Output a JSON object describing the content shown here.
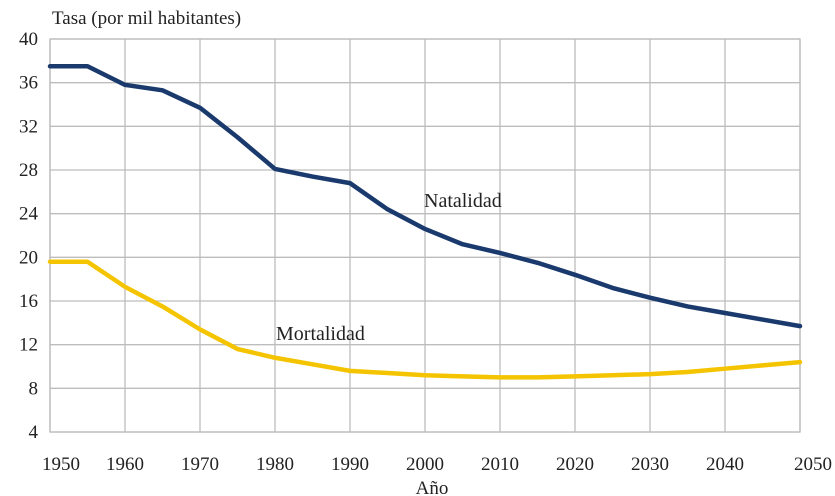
{
  "chart_data": {
    "type": "line",
    "ylabel": "Tasa (por mil habitantes)",
    "xlabel": "Año",
    "xlim": [
      1950,
      2050
    ],
    "ylim": [
      4,
      40
    ],
    "xticks": [
      1950,
      1960,
      1970,
      1980,
      1990,
      2000,
      2010,
      2020,
      2030,
      2040,
      2050
    ],
    "yticks": [
      4,
      8,
      12,
      16,
      20,
      24,
      28,
      32,
      36,
      40
    ],
    "grid": true,
    "legend": "none",
    "series": [
      {
        "name": "Natalidad",
        "color": "#1a3a6e",
        "x": [
          1950,
          1955,
          1960,
          1965,
          1970,
          1975,
          1980,
          1985,
          1990,
          1995,
          2000,
          2005,
          2010,
          2015,
          2020,
          2025,
          2030,
          2035,
          2040,
          2045,
          2050
        ],
        "y": [
          37.5,
          37.5,
          35.8,
          35.3,
          33.7,
          31.0,
          28.1,
          27.4,
          26.8,
          24.4,
          22.6,
          21.2,
          20.4,
          19.5,
          18.4,
          17.2,
          16.3,
          15.5,
          14.9,
          14.3,
          13.7
        ]
      },
      {
        "name": "Mortalidad",
        "color": "#f5c400",
        "x": [
          1950,
          1955,
          1960,
          1965,
          1970,
          1975,
          1980,
          1985,
          1990,
          1995,
          2000,
          2005,
          2010,
          2015,
          2020,
          2025,
          2030,
          2035,
          2040,
          2045,
          2050
        ],
        "y": [
          19.6,
          19.6,
          17.3,
          15.5,
          13.4,
          11.6,
          10.8,
          10.2,
          9.6,
          9.4,
          9.2,
          9.1,
          9.0,
          9.0,
          9.1,
          9.2,
          9.3,
          9.5,
          9.8,
          10.1,
          10.4
        ]
      }
    ],
    "annotations": [
      {
        "text": "Natalidad",
        "series": "Natalidad"
      },
      {
        "text": "Mortalidad",
        "series": "Mortalidad"
      }
    ]
  }
}
